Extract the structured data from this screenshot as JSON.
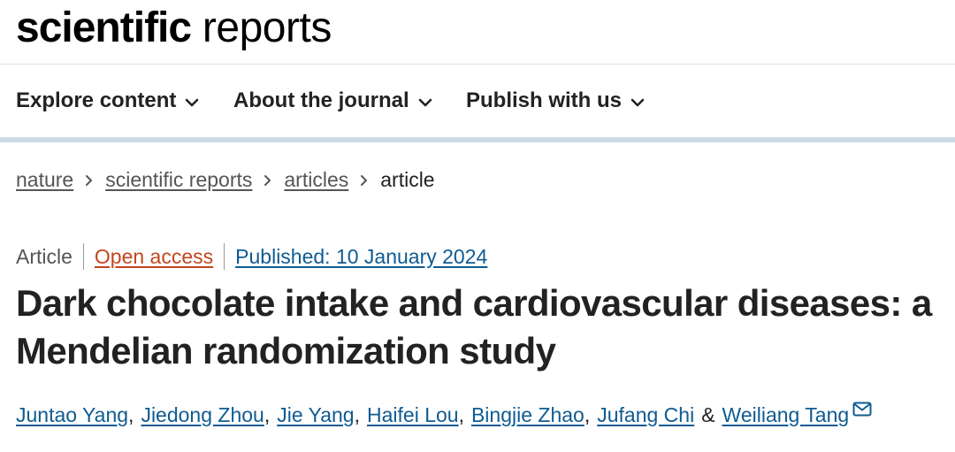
{
  "brand": {
    "bold": "scientific",
    "light": "reports"
  },
  "nav": [
    {
      "label": "Explore content"
    },
    {
      "label": "About the journal"
    },
    {
      "label": "Publish with us"
    }
  ],
  "breadcrumb": [
    "nature",
    "scientific reports",
    "articles",
    "article"
  ],
  "article": {
    "type": "Article",
    "access": "Open access",
    "published": "Published: 10 January 2024",
    "title": "Dark chocolate intake and cardiovascular diseases: a Mendelian randomization study",
    "authors": [
      "Juntao Yang",
      "Jiedong Zhou",
      "Jie Yang",
      "Haifei Lou",
      "Bingjie Zhao",
      "Jufang Chi",
      "Weiliang Tang"
    ],
    "separator": ",",
    "ampersand": "&"
  },
  "icons": {
    "chevron": "chevron-down-icon",
    "mail": "mail-icon"
  },
  "colors": {
    "link": "#0f5b92",
    "open_access": "#c2451e",
    "nav_border": "#cfdbe4"
  }
}
